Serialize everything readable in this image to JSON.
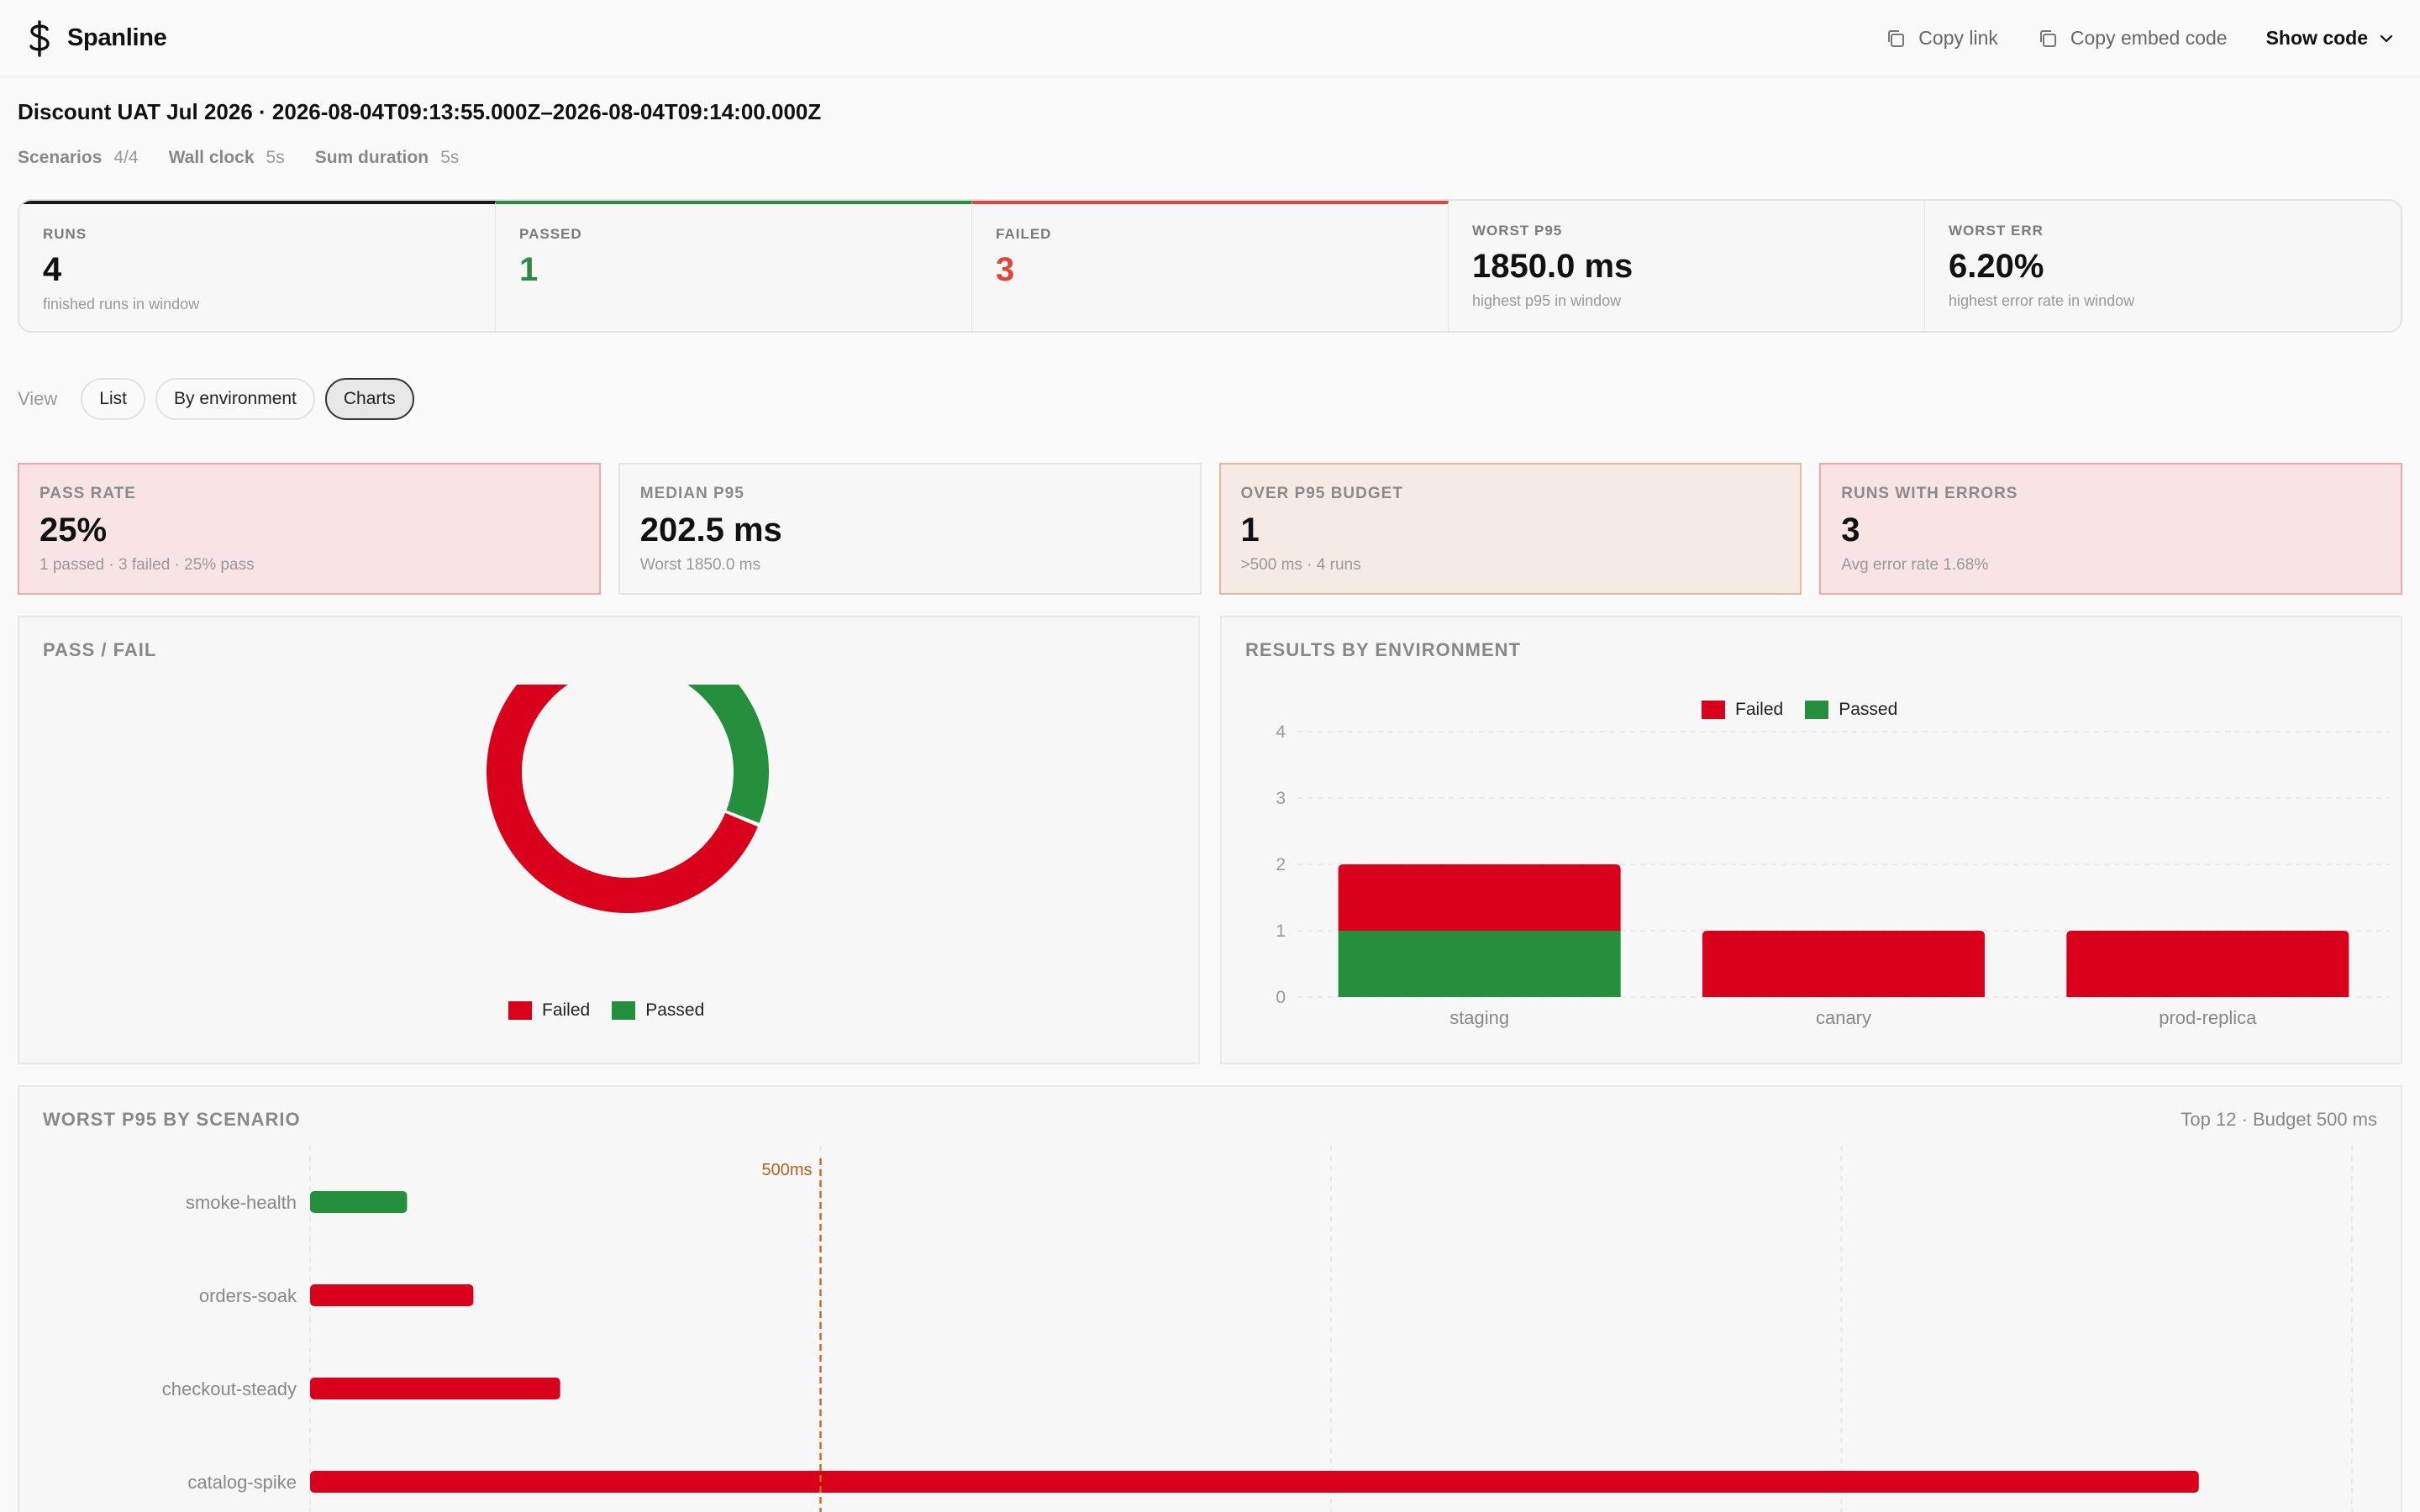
{
  "app": {
    "name": "Spanline",
    "logo_icon": "dollar-sign-icon"
  },
  "top_actions": {
    "copy_link": "Copy link",
    "copy_embed": "Copy embed code",
    "show_code": "Show code"
  },
  "title": "Discount UAT Jul 2026 · 2026-08-04T09:13:55.000Z–2026-08-04T09:14:00.000Z",
  "meta": [
    {
      "key": "Scenarios",
      "value": "4/4"
    },
    {
      "key": "Wall clock",
      "value": "5s"
    },
    {
      "key": "Sum duration",
      "value": "5s"
    }
  ],
  "summary": [
    {
      "label": "RUNS",
      "value": "4",
      "sub": "finished runs in window"
    },
    {
      "label": "PASSED",
      "value": "1",
      "sub": ""
    },
    {
      "label": "FAILED",
      "value": "3",
      "sub": ""
    },
    {
      "label": "WORST P95",
      "value": "1850.0 ms",
      "sub": "highest p95 in window"
    },
    {
      "label": "WORST ERR",
      "value": "6.20%",
      "sub": "highest error rate in window"
    }
  ],
  "view": {
    "label": "View",
    "options": [
      "List",
      "By environment",
      "Charts"
    ],
    "selected": "Charts"
  },
  "kpis": [
    {
      "label": "PASS RATE",
      "value": "25%",
      "sub": "1 passed · 3 failed · 25% pass"
    },
    {
      "label": "MEDIAN P95",
      "value": "202.5 ms",
      "sub": "Worst 1850.0 ms"
    },
    {
      "label": "OVER P95 BUDGET",
      "value": "1",
      "sub": ">500 ms · 4 runs"
    },
    {
      "label": "RUNS WITH ERRORS",
      "value": "3",
      "sub": "Avg error rate 1.68%"
    }
  ],
  "colors": {
    "failed": "#d9001b",
    "passed": "#258f3e"
  },
  "legend": {
    "failed": "Failed",
    "passed": "Passed"
  },
  "panels": {
    "pass_fail": {
      "title": "PASS / FAIL"
    },
    "by_env": {
      "title": "RESULTS BY ENVIRONMENT"
    },
    "worst_p95": {
      "title": "WORST P95 BY SCENARIO",
      "meta": "Top 12 · Budget 500 ms"
    }
  },
  "chart_data": [
    {
      "type": "pie",
      "title": "PASS / FAIL",
      "labels": [
        "Failed",
        "Passed"
      ],
      "values": [
        3,
        1
      ],
      "legend": "bottom"
    },
    {
      "type": "bar",
      "title": "RESULTS BY ENVIRONMENT",
      "stacked": true,
      "categories": [
        "staging",
        "canary",
        "prod-replica"
      ],
      "series": [
        {
          "name": "Passed",
          "values": [
            1,
            0,
            0
          ]
        },
        {
          "name": "Failed",
          "values": [
            1,
            1,
            1
          ]
        }
      ],
      "ylim": [
        0,
        4
      ],
      "yticks": [
        "0",
        "1",
        "2",
        "3",
        "4"
      ],
      "grid": true,
      "legend": "top"
    },
    {
      "type": "bar",
      "orientation": "horizontal",
      "title": "WORST P95 BY SCENARIO",
      "categories": [
        "smoke-health",
        "orders-soak",
        "checkout-steady",
        "catalog-spike"
      ],
      "values": [
        95,
        160,
        245,
        1850
      ],
      "status": [
        "passed",
        "failed",
        "failed",
        "failed"
      ],
      "xlim": [
        0,
        2000
      ],
      "budget": {
        "value": 500,
        "label": "500ms"
      }
    }
  ]
}
